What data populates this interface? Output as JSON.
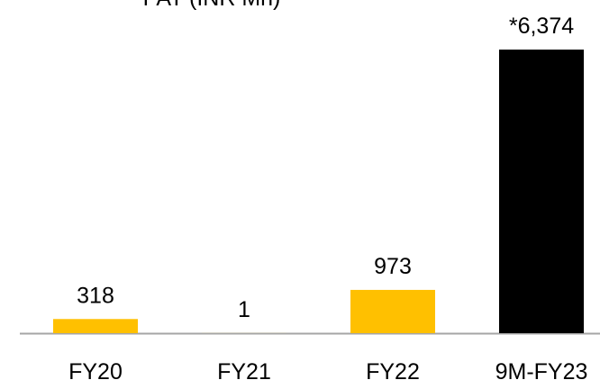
{
  "chart_data": {
    "type": "bar",
    "title": "PAT (INR Mn)",
    "categories": [
      "FY20",
      "FY21",
      "FY22",
      "9M-FY23"
    ],
    "values": [
      318,
      1,
      973,
      6374
    ],
    "value_labels": [
      "318",
      "1",
      "973",
      "*6,374"
    ],
    "colors": [
      "#FFC000",
      "#FFC000",
      "#FFC000",
      "#000000"
    ],
    "ylim": [
      0,
      6700
    ]
  }
}
